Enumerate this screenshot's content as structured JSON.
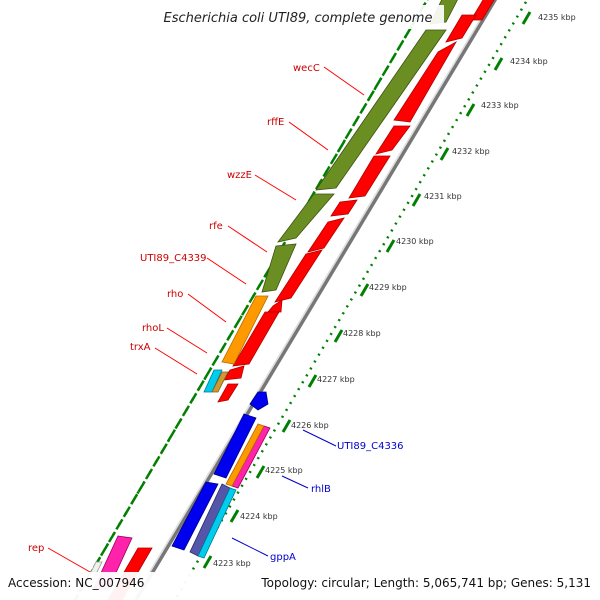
{
  "title": "Escherichia coli UTI89, complete genome",
  "footer": {
    "accession": "Accession: NC_007946",
    "topology": "Topology: circular; Length: 5,065,741 bp; Genes: 5,131"
  },
  "colors": {
    "olive": "#6b8e23",
    "red": "#ff0000",
    "orange": "#ff9900",
    "cyan": "#00ccee",
    "blue": "#0000ee",
    "magenta": "#ff22aa",
    "tick": "#008000",
    "backbone": "#8c8c8c",
    "label_red": "#cc0000",
    "label_blue": "#0000cc"
  },
  "ticks": [
    {
      "label": "4223 kbp"
    },
    {
      "label": "4224 kbp"
    },
    {
      "label": "4225 kbp"
    },
    {
      "label": "4226 kbp"
    },
    {
      "label": "4227 kbp"
    },
    {
      "label": "4228 kbp"
    },
    {
      "label": "4229 kbp"
    },
    {
      "label": "4230 kbp"
    },
    {
      "label": "4231 kbp"
    },
    {
      "label": "4232 kbp"
    },
    {
      "label": "4233 kbp"
    },
    {
      "label": "4234 kbp"
    },
    {
      "label": "4235 kbp"
    }
  ],
  "gene_labels_red": [
    "wecC",
    "rffE",
    "wzzE",
    "rfe",
    "UTI89_C4339",
    "rho",
    "rhoL",
    "trxA",
    "rep"
  ],
  "gene_labels_blue": [
    "UTI89_C4336",
    "rhlB",
    "gppA"
  ]
}
